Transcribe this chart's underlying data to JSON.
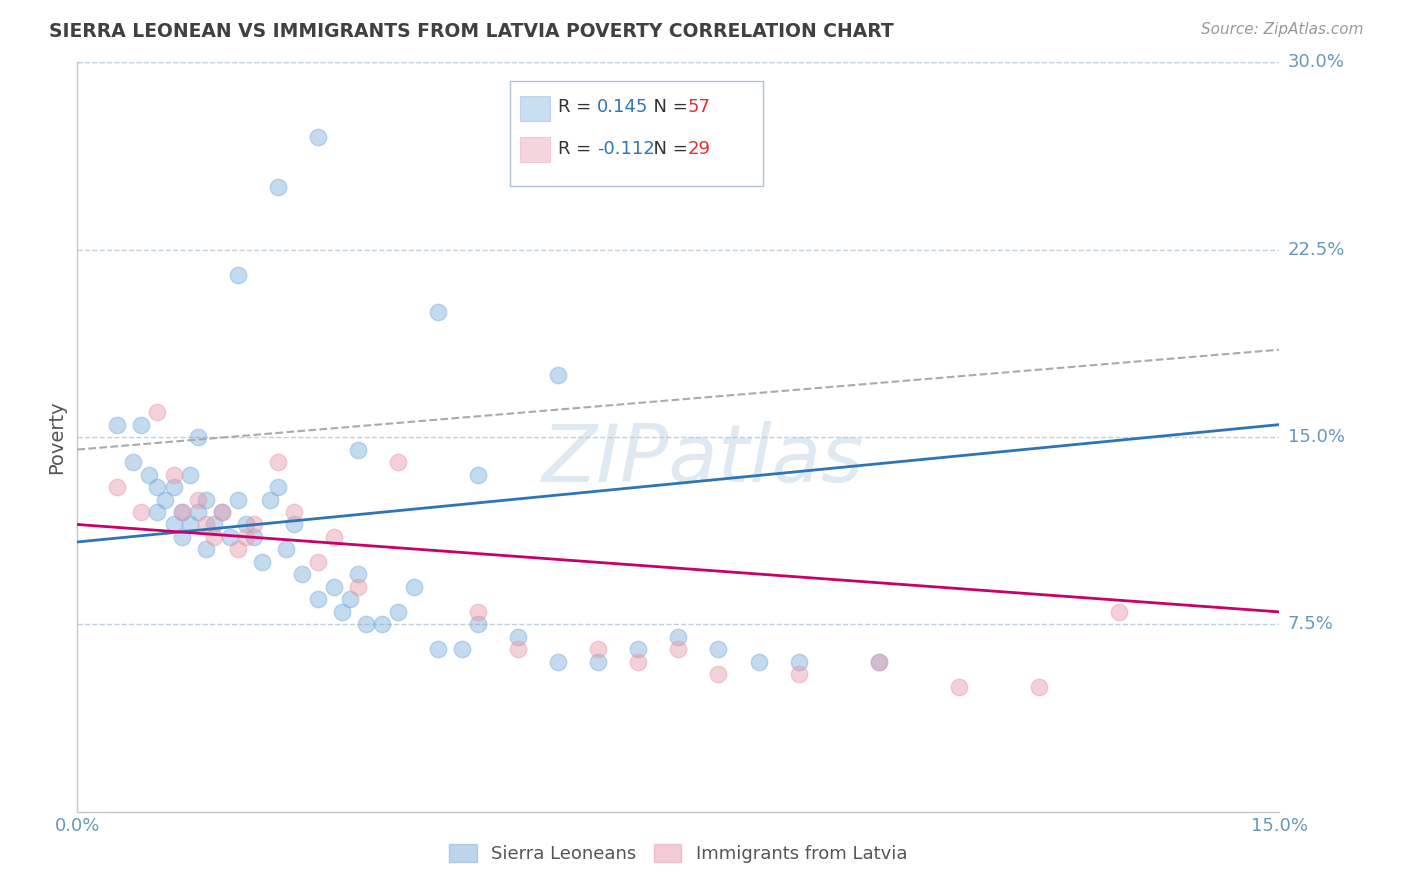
{
  "title": "SIERRA LEONEAN VS IMMIGRANTS FROM LATVIA POVERTY CORRELATION CHART",
  "source": "Source: ZipAtlas.com",
  "ylabel": "Poverty",
  "xlim": [
    0.0,
    0.15
  ],
  "ylim": [
    0.0,
    0.3
  ],
  "ytick_positions": [
    0.075,
    0.15,
    0.225,
    0.3
  ],
  "ytick_labels": [
    "7.5%",
    "15.0%",
    "22.5%",
    "30.0%"
  ],
  "blue_R": 0.145,
  "blue_N": 57,
  "pink_R": -0.112,
  "pink_N": 29,
  "blue_color": "#7aaddc",
  "pink_color": "#e898ac",
  "blue_label": "Sierra Leoneans",
  "pink_label": "Immigrants from Latvia",
  "title_color": "#404040",
  "axis_label_color": "#555555",
  "tick_color": "#6699bb",
  "grid_color": "#c0d0e0",
  "legend_R_color": "#2e75b6",
  "legend_N_color": "#e03030",
  "blue_scatter_x": [
    0.005,
    0.007,
    0.008,
    0.009,
    0.01,
    0.01,
    0.011,
    0.012,
    0.012,
    0.013,
    0.013,
    0.014,
    0.014,
    0.015,
    0.015,
    0.016,
    0.016,
    0.017,
    0.018,
    0.019,
    0.02,
    0.021,
    0.022,
    0.023,
    0.024,
    0.025,
    0.026,
    0.027,
    0.028,
    0.03,
    0.032,
    0.033,
    0.034,
    0.035,
    0.036,
    0.038,
    0.04,
    0.042,
    0.045,
    0.048,
    0.05,
    0.055,
    0.06,
    0.065,
    0.07,
    0.075,
    0.08,
    0.085,
    0.09,
    0.1,
    0.03,
    0.025,
    0.02,
    0.045,
    0.06,
    0.05,
    0.035
  ],
  "blue_scatter_y": [
    0.155,
    0.14,
    0.155,
    0.135,
    0.13,
    0.12,
    0.125,
    0.115,
    0.13,
    0.12,
    0.11,
    0.135,
    0.115,
    0.15,
    0.12,
    0.125,
    0.105,
    0.115,
    0.12,
    0.11,
    0.125,
    0.115,
    0.11,
    0.1,
    0.125,
    0.13,
    0.105,
    0.115,
    0.095,
    0.085,
    0.09,
    0.08,
    0.085,
    0.095,
    0.075,
    0.075,
    0.08,
    0.09,
    0.065,
    0.065,
    0.075,
    0.07,
    0.06,
    0.06,
    0.065,
    0.07,
    0.065,
    0.06,
    0.06,
    0.06,
    0.27,
    0.25,
    0.215,
    0.2,
    0.175,
    0.135,
    0.145
  ],
  "pink_scatter_x": [
    0.005,
    0.008,
    0.01,
    0.012,
    0.013,
    0.015,
    0.016,
    0.017,
    0.018,
    0.02,
    0.021,
    0.022,
    0.025,
    0.027,
    0.03,
    0.032,
    0.035,
    0.04,
    0.05,
    0.055,
    0.065,
    0.07,
    0.075,
    0.08,
    0.09,
    0.1,
    0.11,
    0.12,
    0.13
  ],
  "pink_scatter_y": [
    0.13,
    0.12,
    0.16,
    0.135,
    0.12,
    0.125,
    0.115,
    0.11,
    0.12,
    0.105,
    0.11,
    0.115,
    0.14,
    0.12,
    0.1,
    0.11,
    0.09,
    0.14,
    0.08,
    0.065,
    0.065,
    0.06,
    0.065,
    0.055,
    0.055,
    0.06,
    0.05,
    0.05,
    0.08
  ],
  "watermark_text": "ZIPatlas",
  "background_color": "#ffffff",
  "blue_trend_x0": 0.0,
  "blue_trend_y0": 0.108,
  "blue_trend_x1": 0.15,
  "blue_trend_y1": 0.155,
  "pink_trend_x0": 0.0,
  "pink_trend_y0": 0.115,
  "pink_trend_x1": 0.15,
  "pink_trend_y1": 0.08,
  "dashed_trend_x0": 0.0,
  "dashed_trend_y0": 0.145,
  "dashed_trend_x1": 0.15,
  "dashed_trend_y1": 0.185
}
